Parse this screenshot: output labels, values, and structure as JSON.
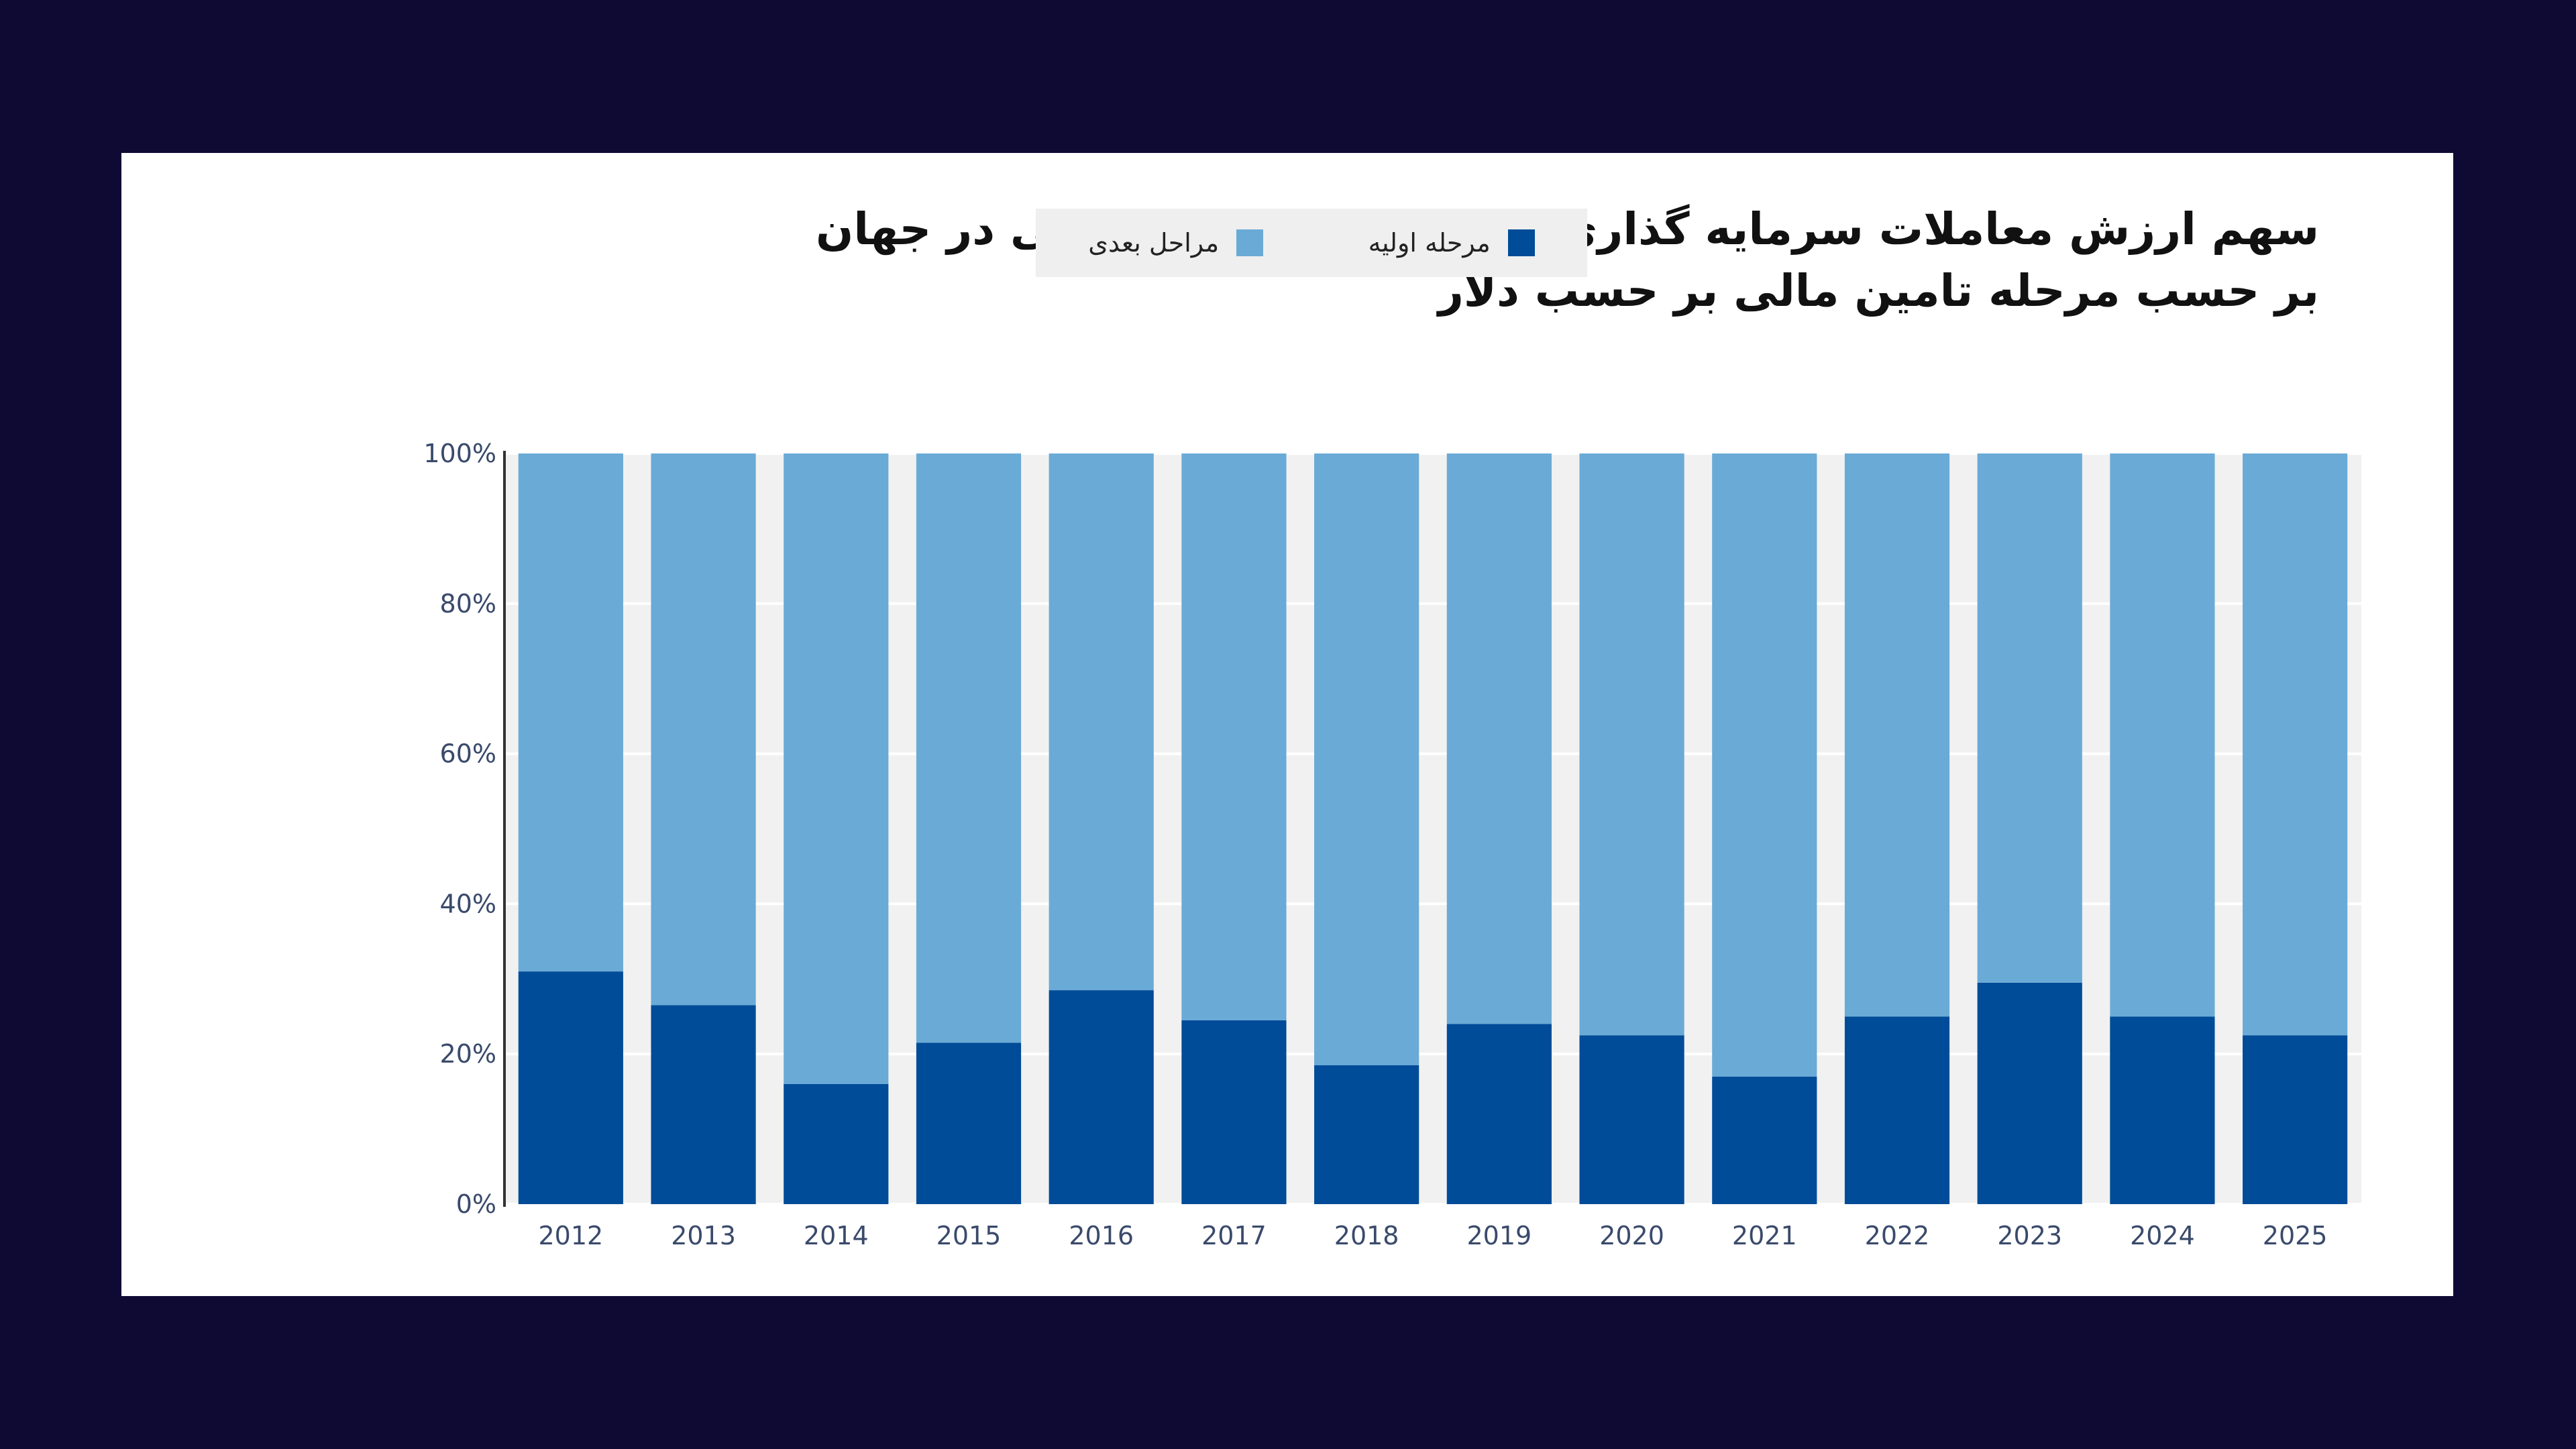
{
  "chart_data": {
    "type": "bar",
    "stacked": true,
    "title_lines": [
      "سهم ارزش معاملات سرمایه گذاری خطرپذیر هوش مصنوعی در جهان",
      "بر حسب مرحله تامین مالی بر حسب دلار"
    ],
    "categories": [
      "2012",
      "2013",
      "2014",
      "2015",
      "2016",
      "2017",
      "2018",
      "2019",
      "2020",
      "2021",
      "2022",
      "2023",
      "2024",
      "2025"
    ],
    "series": [
      {
        "name": "مرحله اولیه",
        "color": "#004c99",
        "values": [
          31,
          26.5,
          16,
          21.5,
          28.5,
          24.5,
          18.5,
          24,
          22.5,
          17,
          25,
          29.5,
          25,
          22.5
        ]
      },
      {
        "name": "مراحل بعدی",
        "color": "#6aaad6",
        "values": [
          69,
          73.5,
          84,
          78.5,
          71.5,
          75.5,
          81.5,
          76,
          77.5,
          83,
          75,
          70.5,
          75,
          77.5
        ]
      }
    ],
    "ylim": [
      0,
      100
    ],
    "yticks": [
      0,
      20,
      40,
      60,
      80,
      100
    ],
    "ytick_labels": [
      "0%",
      "20%",
      "40%",
      "60%",
      "80%",
      "100%"
    ],
    "legend_position": "top-center",
    "plot_background": "#f1f1f1"
  }
}
